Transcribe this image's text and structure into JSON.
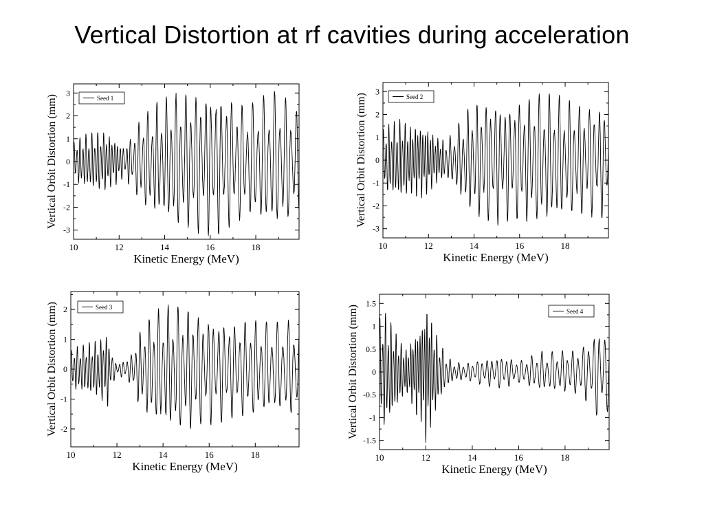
{
  "slide": {
    "title": "Vertical Distortion at rf cavities during acceleration"
  },
  "chart_data": [
    {
      "type": "line",
      "xlabel": "Kinetic Energy (MeV)",
      "ylabel": "Vertical Orbit Distortion (mm)",
      "xlim": [
        10,
        19.9
      ],
      "ylim": [
        -3.4,
        3.4
      ],
      "xticks": [
        10,
        12,
        14,
        16,
        18
      ],
      "yticks": [
        -3,
        -2,
        -1,
        0,
        1,
        2,
        3
      ],
      "legend": "top-left",
      "series": [
        {
          "name": "Seed 1",
          "color": "#000000",
          "x": [
            10.0,
            10.4,
            10.8,
            11.2,
            11.6,
            12.0,
            12.2,
            12.4,
            12.6,
            12.9,
            13.2,
            13.6,
            14.0,
            14.4,
            14.8,
            15.2,
            15.6,
            16.0,
            16.4,
            16.8,
            17.2,
            17.6,
            18.0,
            18.4,
            18.8,
            19.2,
            19.6,
            19.9
          ],
          "values": [
            0.9,
            1.2,
            1.3,
            1.4,
            1.2,
            0.9,
            0.7,
            1.0,
            1.2,
            1.9,
            2.2,
            2.6,
            2.8,
            3.0,
            3.1,
            3.1,
            3.2,
            3.3,
            3.2,
            3.0,
            2.8,
            2.5,
            2.8,
            3.0,
            3.1,
            3.0,
            2.6,
            2.3
          ],
          "periods": [
            0.13,
            0.13,
            0.13,
            0.13,
            0.12,
            0.12,
            0.15,
            0.15,
            0.19,
            0.19,
            0.2,
            0.2,
            0.21,
            0.21,
            0.22,
            0.22,
            0.22,
            0.22,
            0.23,
            0.23,
            0.23,
            0.23,
            0.24,
            0.24,
            0.24,
            0.24,
            0.24,
            0.24
          ]
        }
      ]
    },
    {
      "type": "line",
      "xlabel": "Kinetic Energy (MeV)",
      "ylabel": "Vertical Orbit Distortion (mm)",
      "xlim": [
        10,
        19.9
      ],
      "ylim": [
        -3.4,
        3.4
      ],
      "xticks": [
        10,
        12,
        14,
        16,
        18
      ],
      "yticks": [
        -3,
        -2,
        -1,
        0,
        1,
        2,
        3
      ],
      "legend": "top-left",
      "series": [
        {
          "name": "Seed 2",
          "color": "#000000",
          "x": [
            10.0,
            10.4,
            10.8,
            11.2,
            11.6,
            12.0,
            12.3,
            12.6,
            12.9,
            13.2,
            13.6,
            14.0,
            14.4,
            14.8,
            15.2,
            15.6,
            16.0,
            16.4,
            16.8,
            17.2,
            17.6,
            18.0,
            18.4,
            18.8,
            19.2,
            19.6,
            19.9
          ],
          "values": [
            1.4,
            1.7,
            1.8,
            1.6,
            1.7,
            1.5,
            1.1,
            0.9,
            1.0,
            1.4,
            2.2,
            2.6,
            2.7,
            2.8,
            2.8,
            2.6,
            2.7,
            2.9,
            3.0,
            3.0,
            2.9,
            2.7,
            2.6,
            2.5,
            2.5,
            2.6,
            2.4
          ],
          "periods": [
            0.12,
            0.12,
            0.12,
            0.11,
            0.11,
            0.11,
            0.11,
            0.11,
            0.19,
            0.19,
            0.2,
            0.2,
            0.2,
            0.21,
            0.21,
            0.21,
            0.21,
            0.22,
            0.22,
            0.22,
            0.22,
            0.22,
            0.22,
            0.22,
            0.22,
            0.22,
            0.22
          ]
        }
      ]
    },
    {
      "type": "line",
      "xlabel": "Kinetic Energy (MeV)",
      "ylabel": "Vertical Orbit Distortion (mm)",
      "xlim": [
        10,
        19.9
      ],
      "ylim": [
        -2.6,
        2.6
      ],
      "xticks": [
        10,
        12,
        14,
        16,
        18
      ],
      "yticks": [
        -2,
        -1,
        0,
        1,
        2
      ],
      "legend": "top-left",
      "series": [
        {
          "name": "Seed 3",
          "color": "#000000",
          "x": [
            10.0,
            10.4,
            10.8,
            11.2,
            11.6,
            11.8,
            12.0,
            12.3,
            12.6,
            12.9,
            13.2,
            13.6,
            14.0,
            14.4,
            14.8,
            15.2,
            15.6,
            16.0,
            16.4,
            16.8,
            17.2,
            17.6,
            18.0,
            18.4,
            18.8,
            19.2,
            19.6,
            19.9
          ],
          "values": [
            0.7,
            0.8,
            0.9,
            1.0,
            1.3,
            0.5,
            0.2,
            0.3,
            0.5,
            1.2,
            1.6,
            1.9,
            2.1,
            2.2,
            2.2,
            2.1,
            1.9,
            1.9,
            1.8,
            1.7,
            1.6,
            1.7,
            1.7,
            1.6,
            1.6,
            1.6,
            1.7,
            1.6
          ],
          "periods": [
            0.13,
            0.13,
            0.13,
            0.12,
            0.12,
            0.15,
            0.16,
            0.16,
            0.19,
            0.19,
            0.2,
            0.2,
            0.21,
            0.21,
            0.22,
            0.22,
            0.22,
            0.22,
            0.23,
            0.23,
            0.23,
            0.23,
            0.23,
            0.23,
            0.24,
            0.24,
            0.24,
            0.24
          ]
        }
      ]
    },
    {
      "type": "line",
      "xlabel": "Kinetic Energy (MeV)",
      "ylabel": "Vertical Orbit Distortion (mm)",
      "xlim": [
        10,
        19.9
      ],
      "ylim": [
        -1.7,
        1.7
      ],
      "xticks": [
        10,
        12,
        14,
        16,
        18
      ],
      "yticks": [
        -1.5,
        -1,
        -0.5,
        0,
        0.5,
        1,
        1.5
      ],
      "legend": "top-right",
      "series": [
        {
          "name": "Seed 4",
          "color": "#000000",
          "x": [
            10.0,
            10.3,
            10.6,
            10.9,
            11.2,
            11.5,
            11.8,
            12.0,
            12.2,
            12.5,
            12.8,
            13.1,
            13.5,
            14.0,
            14.5,
            15.0,
            15.5,
            16.0,
            16.5,
            17.0,
            17.5,
            18.0,
            18.5,
            19.0,
            19.4,
            19.7,
            19.9
          ],
          "values": [
            1.3,
            1.3,
            1.0,
            0.7,
            0.5,
            0.9,
            1.1,
            1.6,
            1.3,
            0.8,
            0.45,
            0.25,
            0.2,
            0.22,
            0.3,
            0.35,
            0.35,
            0.25,
            0.35,
            0.45,
            0.45,
            0.5,
            0.5,
            0.7,
            1.0,
            1.0,
            0.8
          ],
          "periods": [
            0.12,
            0.12,
            0.11,
            0.11,
            0.1,
            0.1,
            0.1,
            0.1,
            0.1,
            0.12,
            0.15,
            0.18,
            0.2,
            0.2,
            0.21,
            0.21,
            0.21,
            0.22,
            0.22,
            0.22,
            0.22,
            0.22,
            0.23,
            0.23,
            0.23,
            0.23,
            0.23
          ]
        }
      ]
    }
  ]
}
